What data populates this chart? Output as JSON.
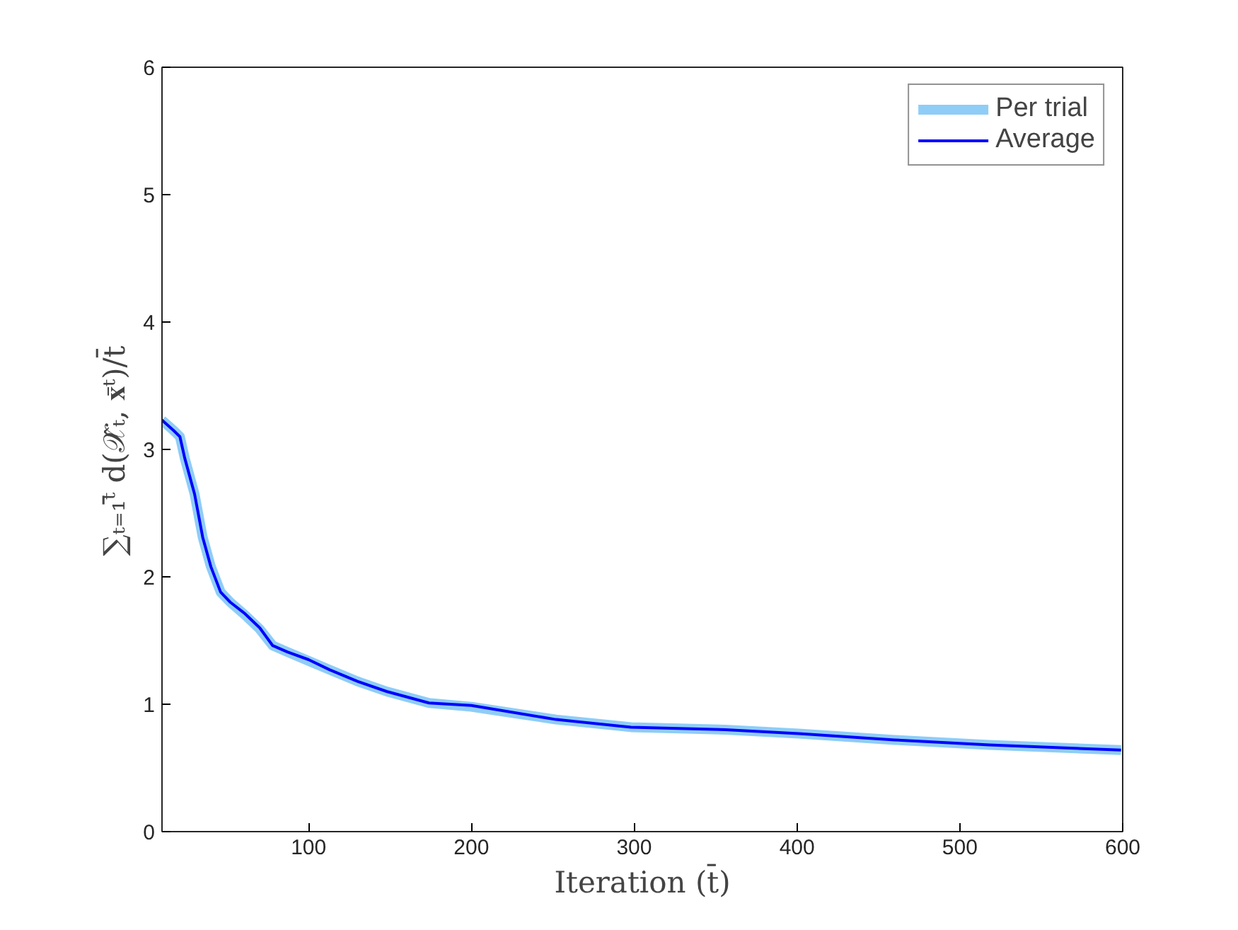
{
  "chart_data": {
    "type": "line",
    "xlabel": "Iteration (t̄)",
    "ylabel": "∑ₜ₌₁ᵗ̄ d(𝒳̂ₜ, 𝐱̄ᵗ)/t̄",
    "x": [
      10,
      17,
      21,
      24,
      30,
      35,
      40,
      46,
      52,
      61,
      70,
      78,
      87,
      100,
      113,
      130,
      148,
      174,
      200,
      252,
      298,
      356,
      401,
      460,
      518,
      599
    ],
    "xlim": [
      10,
      600
    ],
    "xticks": [
      100,
      200,
      300,
      400,
      500,
      600
    ],
    "ylim": [
      0,
      6
    ],
    "yticks": [
      0,
      1,
      2,
      3,
      4,
      5,
      6
    ],
    "series": [
      {
        "name": "Per trial",
        "color": "#8fcdf7",
        "values": [
          3.23,
          3.15,
          3.1,
          2.93,
          2.65,
          2.31,
          2.08,
          1.88,
          1.8,
          1.7,
          1.59,
          1.46,
          1.41,
          1.34,
          1.27,
          1.18,
          1.1,
          1.01,
          0.98,
          0.88,
          0.82,
          0.8,
          0.77,
          0.72,
          0.68,
          0.64
        ]
      },
      {
        "name": "Average",
        "color": "#0000ff",
        "values": [
          3.23,
          3.15,
          3.1,
          2.93,
          2.65,
          2.31,
          2.08,
          1.88,
          1.8,
          1.71,
          1.6,
          1.46,
          1.41,
          1.35,
          1.27,
          1.18,
          1.1,
          1.01,
          0.99,
          0.88,
          0.82,
          0.8,
          0.77,
          0.72,
          0.68,
          0.64
        ]
      }
    ],
    "grid": false,
    "legend": "top right",
    "line_style": "solid",
    "marker": "none"
  }
}
